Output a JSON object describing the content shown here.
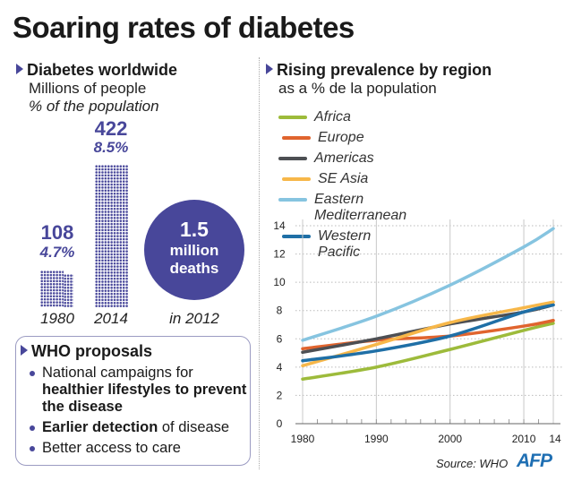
{
  "title": "Soaring rates of diabetes",
  "left": {
    "heading": "Diabetes worldwide",
    "sub1": "Millions of people",
    "sub2": "% of the population",
    "bars": [
      {
        "year": "1980",
        "value": "108",
        "pct": "4.7%"
      },
      {
        "year": "2014",
        "value": "422",
        "pct": "8.5%"
      }
    ],
    "deaths": {
      "value": "1.5",
      "unit": "million",
      "label": "deaths",
      "year": "in 2012"
    }
  },
  "who": {
    "heading": "WHO proposals",
    "items": [
      {
        "normal": "National campaigns for ",
        "bold": "healthier lifestyles to prevent the disease",
        "after": ""
      },
      {
        "normal": "",
        "bold": "Earlier detection",
        "after": " of disease"
      },
      {
        "normal": "Better access to care",
        "bold": "",
        "after": ""
      }
    ]
  },
  "colors": {
    "accent": "#48479a"
  },
  "chart_data": {
    "type": "line",
    "title": "Rising prevalence by region",
    "subtitle": "as a % de la population",
    "x": [
      1980,
      1990,
      2000,
      2010,
      2014
    ],
    "x_tick_labels": [
      "1980",
      "1990",
      "2000",
      "2010",
      "14"
    ],
    "y_ticks": [
      0,
      2,
      4,
      6,
      8,
      10,
      12,
      14
    ],
    "ylim": [
      0,
      14
    ],
    "grid": "horizontal dotted",
    "legend": "top",
    "series": [
      {
        "name": "Africa",
        "color": "#9dbb3b",
        "values": [
          3.15,
          4.0,
          5.25,
          6.6,
          7.1
        ]
      },
      {
        "name": "Europe",
        "color": "#e0642e",
        "values": [
          5.3,
          5.9,
          6.2,
          6.9,
          7.3
        ]
      },
      {
        "name": "Americas",
        "color": "#4d4f53",
        "values": [
          5.05,
          6.0,
          7.05,
          7.9,
          8.4
        ]
      },
      {
        "name": "SE Asia",
        "color": "#f7b749",
        "values": [
          4.1,
          5.6,
          7.15,
          8.2,
          8.6
        ]
      },
      {
        "name": "Eastern Mediterranean",
        "color": "#86c4e0",
        "values": [
          5.9,
          7.6,
          9.8,
          12.5,
          13.8
        ]
      },
      {
        "name": "Western Pacific",
        "color": "#1f6fa6",
        "values": [
          4.45,
          5.15,
          6.2,
          7.9,
          8.4
        ]
      }
    ],
    "source": "Source: WHO",
    "logo": "AFP"
  }
}
